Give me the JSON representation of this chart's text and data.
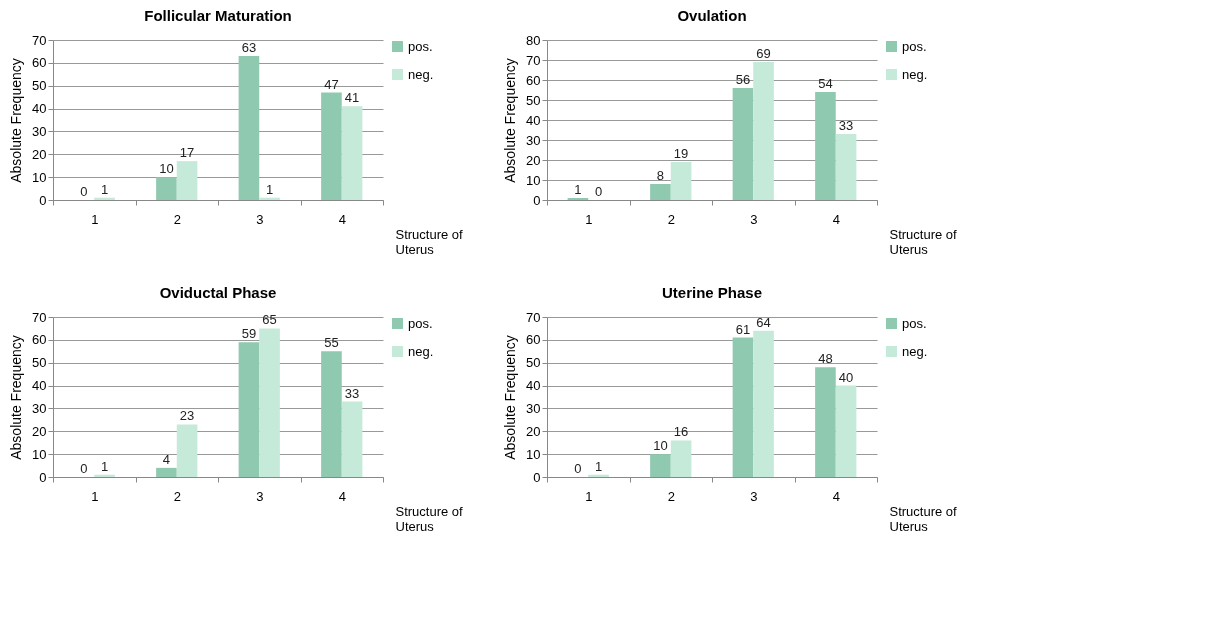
{
  "chart_data": [
    {
      "type": "bar",
      "title": "Follicular Maturation",
      "xlabel": "Structure of Uterus",
      "ylabel": "Absolute Frequency",
      "categories": [
        "1",
        "2",
        "3",
        "4"
      ],
      "series": [
        {
          "name": "pos.",
          "color": "#8fc9b0",
          "values": [
            0,
            10,
            63,
            47
          ]
        },
        {
          "name": "neg.",
          "color": "#c5ead9",
          "values": [
            1,
            17,
            1,
            41
          ]
        }
      ],
      "ylim": [
        0,
        70
      ],
      "yticks": [
        0,
        10,
        20,
        30,
        40,
        50,
        60,
        70
      ],
      "grid": "y",
      "legend": "right",
      "data_labels": true
    },
    {
      "type": "bar",
      "title": "Ovulation",
      "xlabel": "Structure of Uterus",
      "ylabel": "Absolute Frequency",
      "categories": [
        "1",
        "2",
        "3",
        "4"
      ],
      "series": [
        {
          "name": "pos.",
          "color": "#8fc9b0",
          "values": [
            1,
            8,
            56,
            54
          ]
        },
        {
          "name": "neg.",
          "color": "#c5ead9",
          "values": [
            0,
            19,
            69,
            33
          ]
        }
      ],
      "ylim": [
        0,
        80
      ],
      "yticks": [
        0,
        10,
        20,
        30,
        40,
        50,
        60,
        70,
        80
      ],
      "grid": "y",
      "legend": "right",
      "data_labels": true
    },
    {
      "type": "bar",
      "title": "Oviductal Phase",
      "xlabel": "Structure of Uterus",
      "ylabel": "Absolute Frequency",
      "categories": [
        "1",
        "2",
        "3",
        "4"
      ],
      "series": [
        {
          "name": "pos.",
          "color": "#8fc9b0",
          "values": [
            0,
            4,
            59,
            55
          ]
        },
        {
          "name": "neg.",
          "color": "#c5ead9",
          "values": [
            1,
            23,
            65,
            33
          ]
        }
      ],
      "ylim": [
        0,
        70
      ],
      "yticks": [
        0,
        10,
        20,
        30,
        40,
        50,
        60,
        70
      ],
      "grid": "y",
      "legend": "right",
      "data_labels": true
    },
    {
      "type": "bar",
      "title": "Uterine Phase",
      "xlabel": "Structure of Uterus",
      "ylabel": "Absolute Frequency",
      "categories": [
        "1",
        "2",
        "3",
        "4"
      ],
      "series": [
        {
          "name": "pos.",
          "color": "#8fc9b0",
          "values": [
            0,
            10,
            61,
            48
          ]
        },
        {
          "name": "neg.",
          "color": "#c5ead9",
          "values": [
            1,
            16,
            64,
            40
          ]
        }
      ],
      "ylim": [
        0,
        70
      ],
      "yticks": [
        0,
        10,
        20,
        30,
        40,
        50,
        60,
        70
      ],
      "grid": "y",
      "legend": "right",
      "data_labels": true
    }
  ]
}
